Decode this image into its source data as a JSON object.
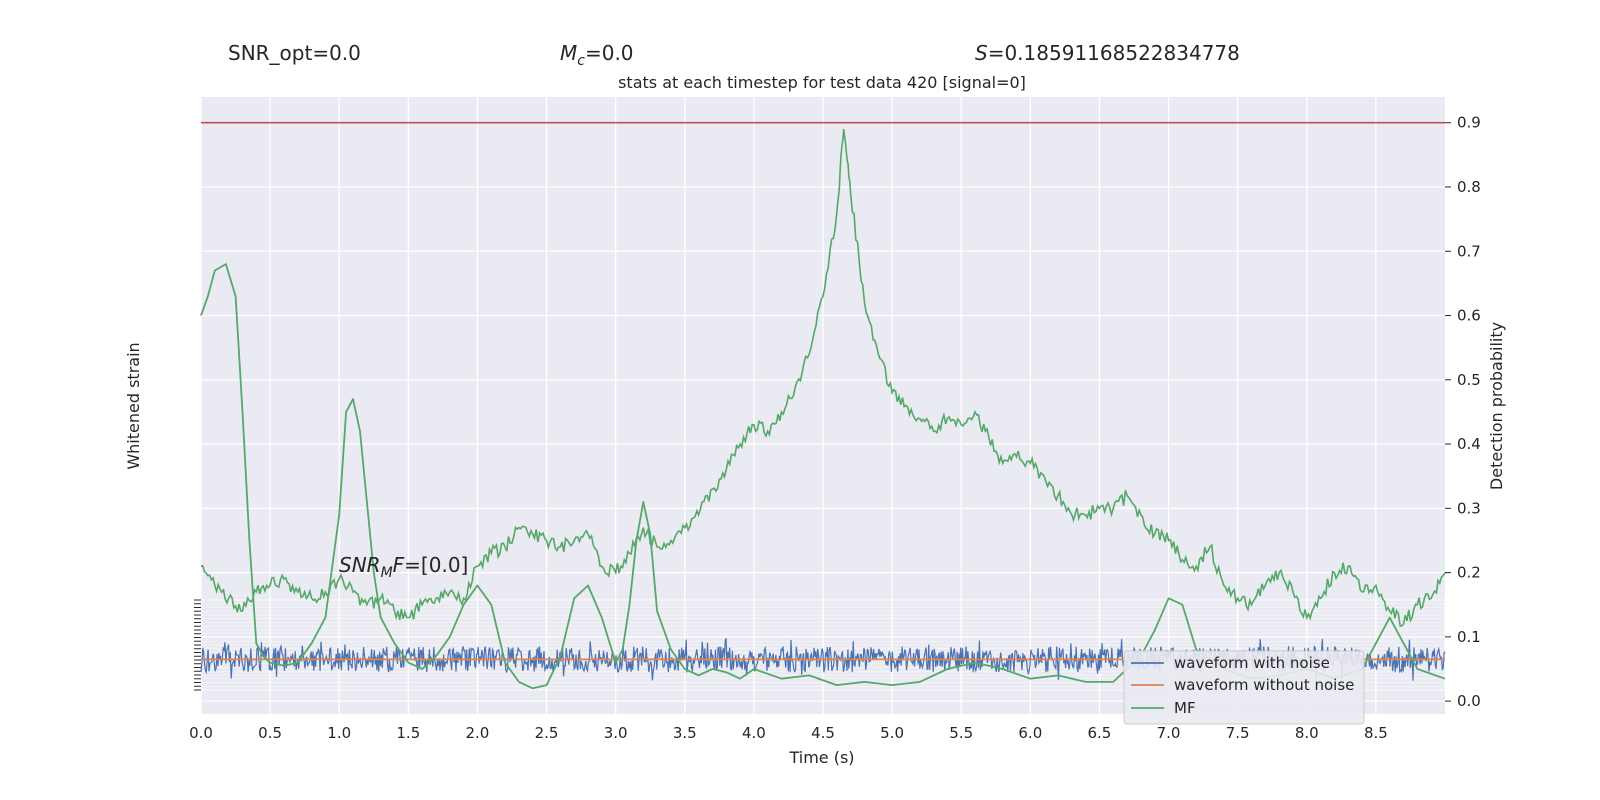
{
  "chart_data": {
    "type": "line",
    "title": "stats at each timestep for test data 420 [signal=0]",
    "header": {
      "snr_opt": "SNR_opt=0.0",
      "mc_symbol": "M",
      "mc_sub": "c",
      "mc_value": "=0.0",
      "s_symbol": "S",
      "s_value": "=0.18591168522834778"
    },
    "annotation": {
      "snr_symbol": "SNR",
      "snr_sub": "M",
      "snr_tail": "F",
      "snr_value": "=[0.0]"
    },
    "xlabel": "Time (s)",
    "ylabel_left": "Whitened strain",
    "ylabel_right": "Detection probability",
    "xlim": [
      0,
      9.0
    ],
    "ylim_right": [
      -0.02,
      0.94
    ],
    "x_ticks": [
      "0.0",
      "0.5",
      "1.0",
      "1.5",
      "2.0",
      "2.5",
      "3.0",
      "3.5",
      "4.0",
      "4.5",
      "5.0",
      "5.5",
      "6.0",
      "6.5",
      "7.0",
      "7.5",
      "8.0",
      "8.5"
    ],
    "y_ticks_right": [
      "0.0",
      "0.1",
      "0.2",
      "0.3",
      "0.4",
      "0.5",
      "0.6",
      "0.7",
      "0.8",
      "0.9"
    ],
    "threshold": 0.9,
    "grid": true,
    "legend_position": "bottom-right",
    "legend": [
      "waveform with noise",
      "waveform without noise",
      "MF"
    ],
    "colors": {
      "noise": "#4c72b0",
      "clean": "#dd8452",
      "mf": "#55a868",
      "threshold": "#c44e52",
      "background": "#eaeaf2"
    },
    "series": [
      {
        "name": "Detection probability",
        "x": [
          0.0,
          0.1,
          0.2,
          0.3,
          0.4,
          0.5,
          0.6,
          0.7,
          0.8,
          0.9,
          1.0,
          1.1,
          1.2,
          1.3,
          1.4,
          1.5,
          1.6,
          1.7,
          1.8,
          1.9,
          2.0,
          2.1,
          2.2,
          2.3,
          2.4,
          2.5,
          2.6,
          2.7,
          2.8,
          2.9,
          3.0,
          3.1,
          3.2,
          3.3,
          3.4,
          3.5,
          3.6,
          3.7,
          3.8,
          3.9,
          4.0,
          4.1,
          4.2,
          4.3,
          4.4,
          4.5,
          4.6,
          4.65,
          4.7,
          4.8,
          4.9,
          5.0,
          5.1,
          5.2,
          5.3,
          5.4,
          5.5,
          5.6,
          5.7,
          5.8,
          5.9,
          6.0,
          6.1,
          6.2,
          6.3,
          6.4,
          6.5,
          6.6,
          6.7,
          6.8,
          6.9,
          7.0,
          7.1,
          7.2,
          7.3,
          7.4,
          7.5,
          7.6,
          7.7,
          7.8,
          7.9,
          8.0,
          8.1,
          8.2,
          8.3,
          8.4,
          8.5,
          8.6,
          8.7,
          8.8,
          8.9,
          9.0
        ],
        "y": [
          0.21,
          0.18,
          0.16,
          0.14,
          0.17,
          0.18,
          0.19,
          0.17,
          0.16,
          0.17,
          0.19,
          0.17,
          0.15,
          0.16,
          0.14,
          0.13,
          0.15,
          0.16,
          0.17,
          0.16,
          0.21,
          0.23,
          0.24,
          0.27,
          0.26,
          0.25,
          0.24,
          0.25,
          0.26,
          0.21,
          0.2,
          0.23,
          0.27,
          0.24,
          0.25,
          0.27,
          0.29,
          0.33,
          0.36,
          0.4,
          0.43,
          0.42,
          0.45,
          0.49,
          0.54,
          0.63,
          0.76,
          0.89,
          0.79,
          0.62,
          0.54,
          0.48,
          0.46,
          0.44,
          0.42,
          0.44,
          0.43,
          0.45,
          0.41,
          0.37,
          0.38,
          0.37,
          0.35,
          0.32,
          0.29,
          0.29,
          0.3,
          0.3,
          0.32,
          0.29,
          0.26,
          0.25,
          0.22,
          0.21,
          0.24,
          0.18,
          0.16,
          0.15,
          0.18,
          0.2,
          0.17,
          0.13,
          0.16,
          0.2,
          0.21,
          0.17,
          0.18,
          0.14,
          0.12,
          0.15,
          0.16,
          0.2
        ]
      },
      {
        "name": "MF",
        "x": [
          0.0,
          0.05,
          0.1,
          0.18,
          0.25,
          0.3,
          0.35,
          0.4,
          0.45,
          0.5,
          0.6,
          0.7,
          0.8,
          0.9,
          1.0,
          1.05,
          1.1,
          1.15,
          1.2,
          1.25,
          1.3,
          1.4,
          1.5,
          1.6,
          1.7,
          1.8,
          1.9,
          2.0,
          2.1,
          2.2,
          2.3,
          2.4,
          2.5,
          2.6,
          2.7,
          2.8,
          2.9,
          3.0,
          3.05,
          3.1,
          3.15,
          3.2,
          3.25,
          3.3,
          3.4,
          3.5,
          3.6,
          3.7,
          3.8,
          3.9,
          4.0,
          4.2,
          4.4,
          4.6,
          4.8,
          5.0,
          5.2,
          5.4,
          5.6,
          5.8,
          6.0,
          6.2,
          6.4,
          6.6,
          6.8,
          6.9,
          7.0,
          7.1,
          7.2,
          7.4,
          7.6,
          7.8,
          8.0,
          8.2,
          8.4,
          8.6,
          8.8,
          9.0
        ],
        "y": [
          0.6,
          0.63,
          0.67,
          0.68,
          0.63,
          0.45,
          0.25,
          0.09,
          0.07,
          0.06,
          0.055,
          0.06,
          0.09,
          0.13,
          0.29,
          0.45,
          0.47,
          0.42,
          0.31,
          0.2,
          0.13,
          0.09,
          0.06,
          0.05,
          0.07,
          0.1,
          0.15,
          0.18,
          0.15,
          0.06,
          0.03,
          0.02,
          0.025,
          0.07,
          0.16,
          0.18,
          0.13,
          0.06,
          0.08,
          0.15,
          0.25,
          0.31,
          0.26,
          0.14,
          0.08,
          0.05,
          0.04,
          0.05,
          0.045,
          0.035,
          0.05,
          0.035,
          0.04,
          0.025,
          0.03,
          0.025,
          0.03,
          0.05,
          0.06,
          0.05,
          0.035,
          0.04,
          0.03,
          0.03,
          0.07,
          0.11,
          0.16,
          0.15,
          0.08,
          0.05,
          0.035,
          0.04,
          0.05,
          0.035,
          0.05,
          0.13,
          0.05,
          0.035
        ]
      },
      {
        "name": "waveform with noise",
        "baseline": 0.065,
        "amplitude": 0.02
      },
      {
        "name": "waveform without noise",
        "value": 0.065
      }
    ]
  }
}
